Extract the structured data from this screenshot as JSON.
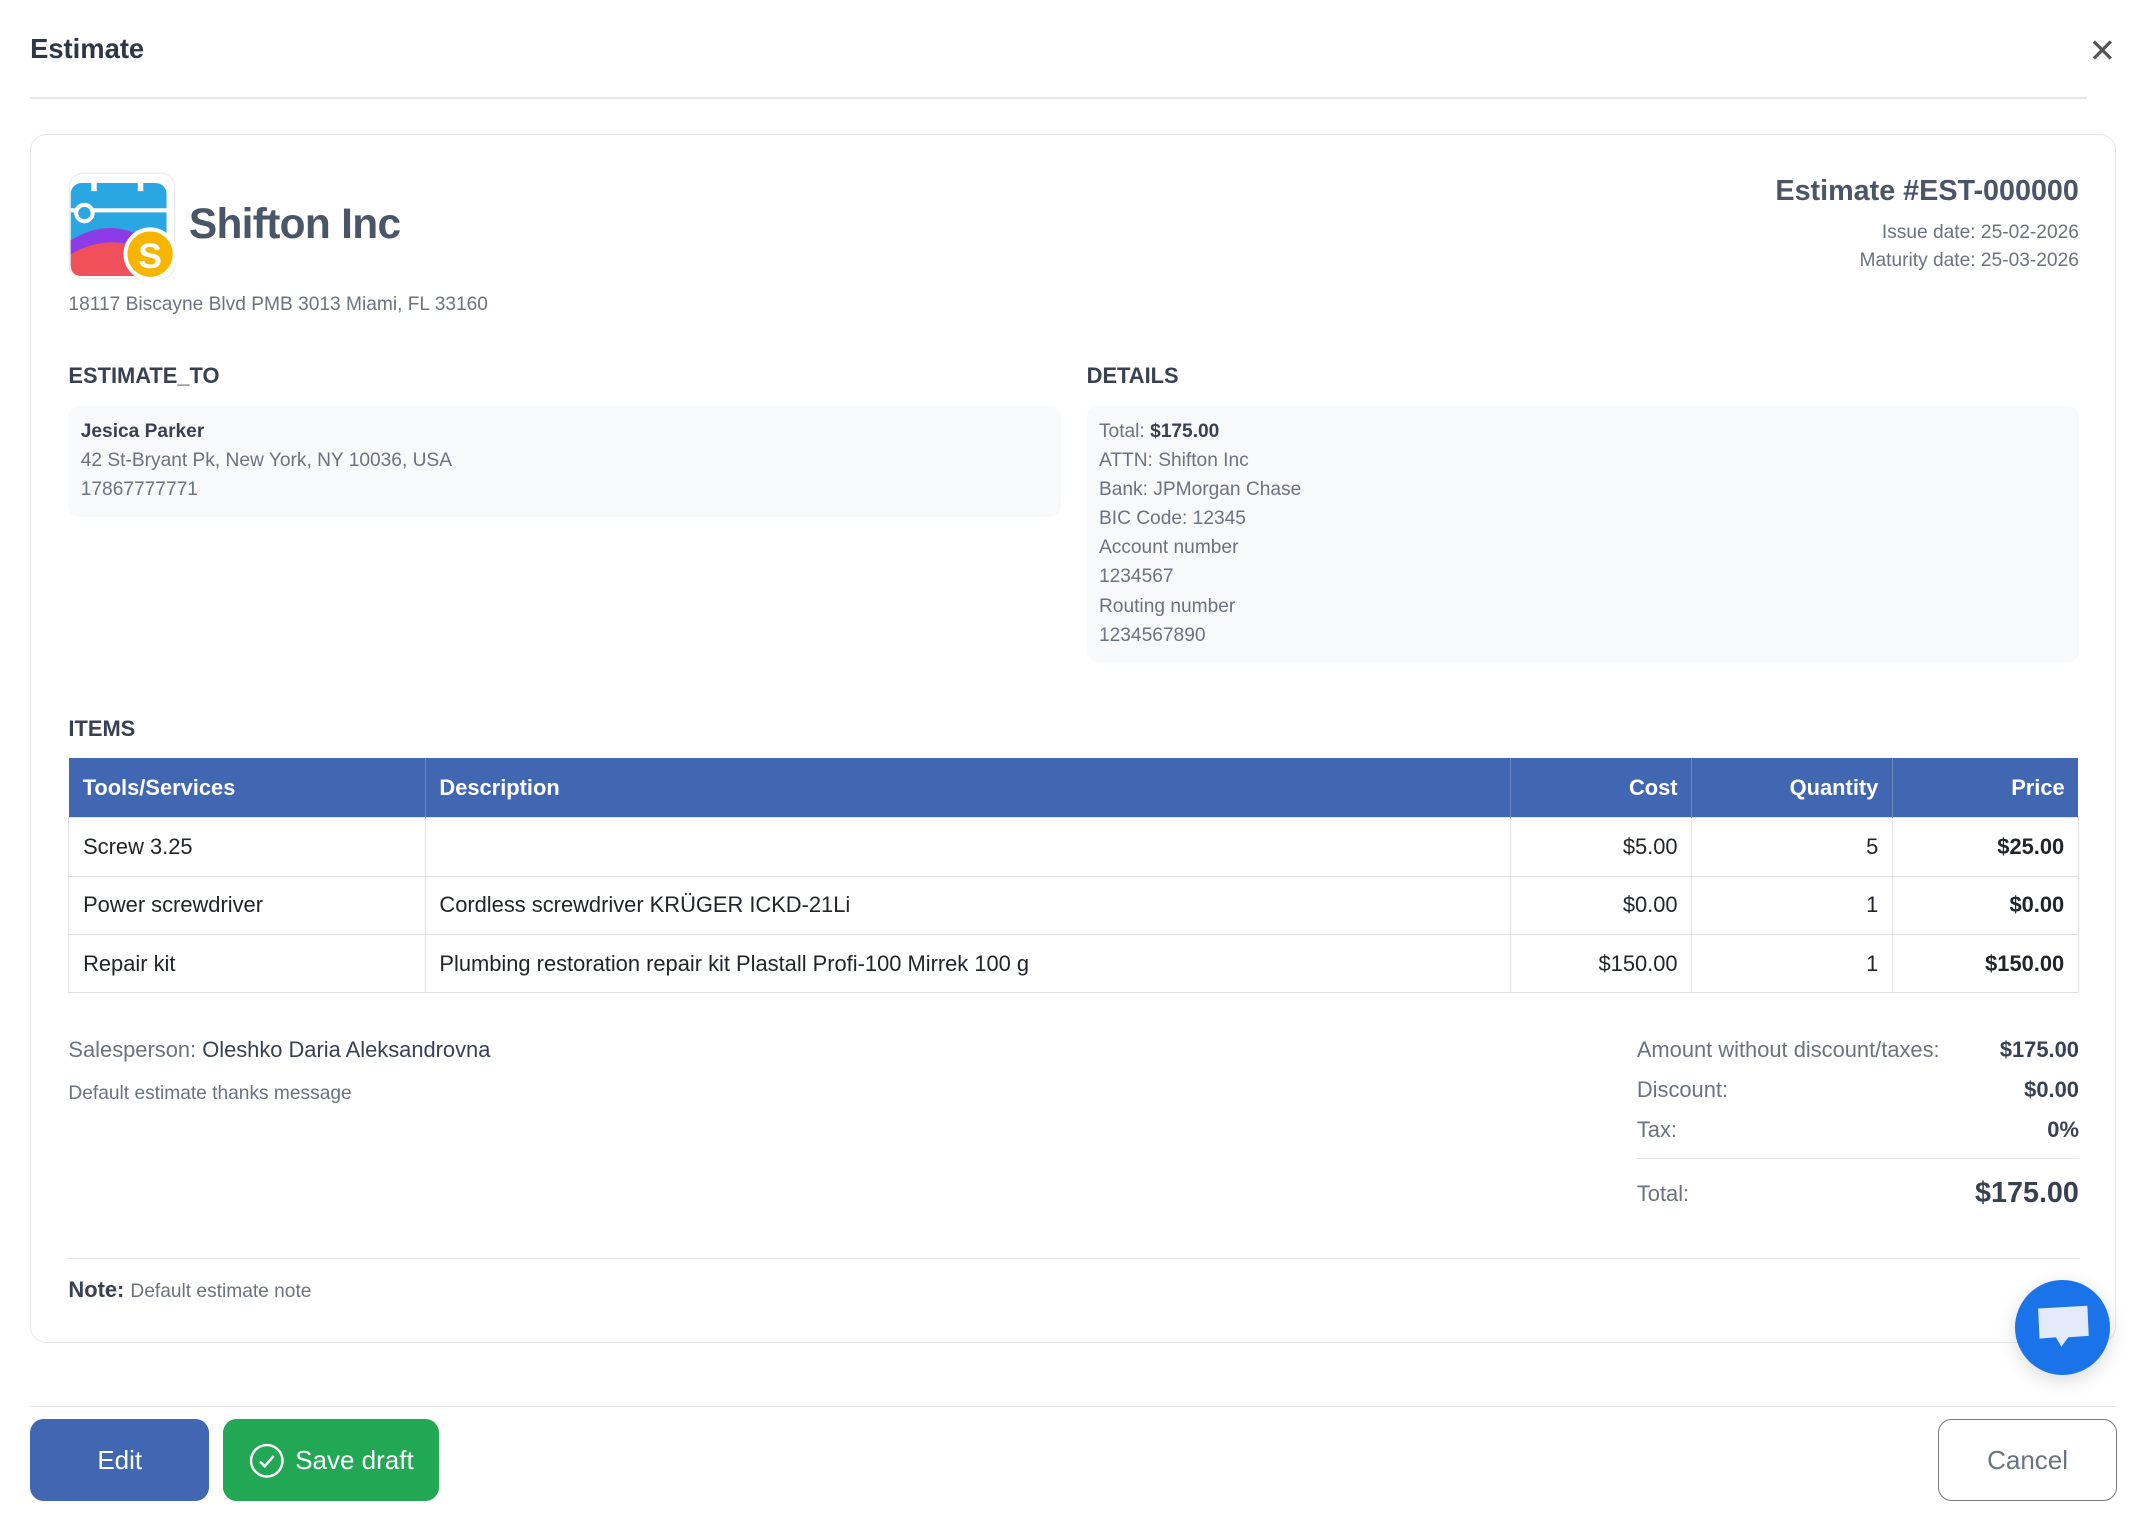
{
  "modal": {
    "title": "Estimate",
    "close_icon": "close-icon"
  },
  "company": {
    "name": "Shifton Inc",
    "address": "18117 Biscayne Blvd PMB 3013 Miami, FL 33160"
  },
  "estimate": {
    "number": "Estimate #EST-000000",
    "issue_date": "Issue date: 25-02-2026",
    "maturity_date": "Maturity date: 25-03-2026"
  },
  "estimate_to": {
    "label": "ESTIMATE_TO",
    "name": "Jesica Parker",
    "address": "42 St-Bryant Pk, New York, NY 10036, USA",
    "phone": "17867777771"
  },
  "details": {
    "label": "DETAILS",
    "total_label": "Total:",
    "total_value": "$175.00",
    "lines": [
      "ATTN: Shifton Inc",
      "Bank: JPMorgan Chase",
      "BIC Code: 12345",
      "Account number",
      "1234567",
      "Routing number",
      "1234567890"
    ]
  },
  "items": {
    "label": "ITEMS",
    "headers": [
      "Tools/Services",
      "Description",
      "Cost",
      "Quantity",
      "Price"
    ],
    "rows": [
      [
        "Screw 3.25",
        "",
        "$5.00",
        "5",
        "$25.00"
      ],
      [
        "Power screwdriver",
        "Cordless screwdriver KRÜGER ICKD-21Li",
        "$0.00",
        "1",
        "$0.00"
      ],
      [
        "Repair kit",
        "Plumbing restoration repair kit Plastall Profi-100 Mirrek 100 g",
        "$150.00",
        "1",
        "$150.00"
      ]
    ]
  },
  "salesperson": {
    "label": "Salesperson:",
    "name": "Oleshko Daria Aleksandrovna"
  },
  "thanks": "Default estimate thanks message",
  "totals": {
    "amount_label": "Amount without discount/taxes:",
    "amount": "$175.00",
    "discount_label": "Discount:",
    "discount": "$0.00",
    "tax_label": "Tax:",
    "tax": "0%",
    "total_label": "Total:",
    "total": "$175.00"
  },
  "note": {
    "label": "Note:",
    "text": "Default estimate note"
  },
  "footer": {
    "edit": "Edit",
    "save_draft": "Save draft",
    "cancel": "Cancel"
  },
  "colors": {
    "primary": "#4267b2",
    "success": "#22a755",
    "chat": "#1a73e8"
  }
}
